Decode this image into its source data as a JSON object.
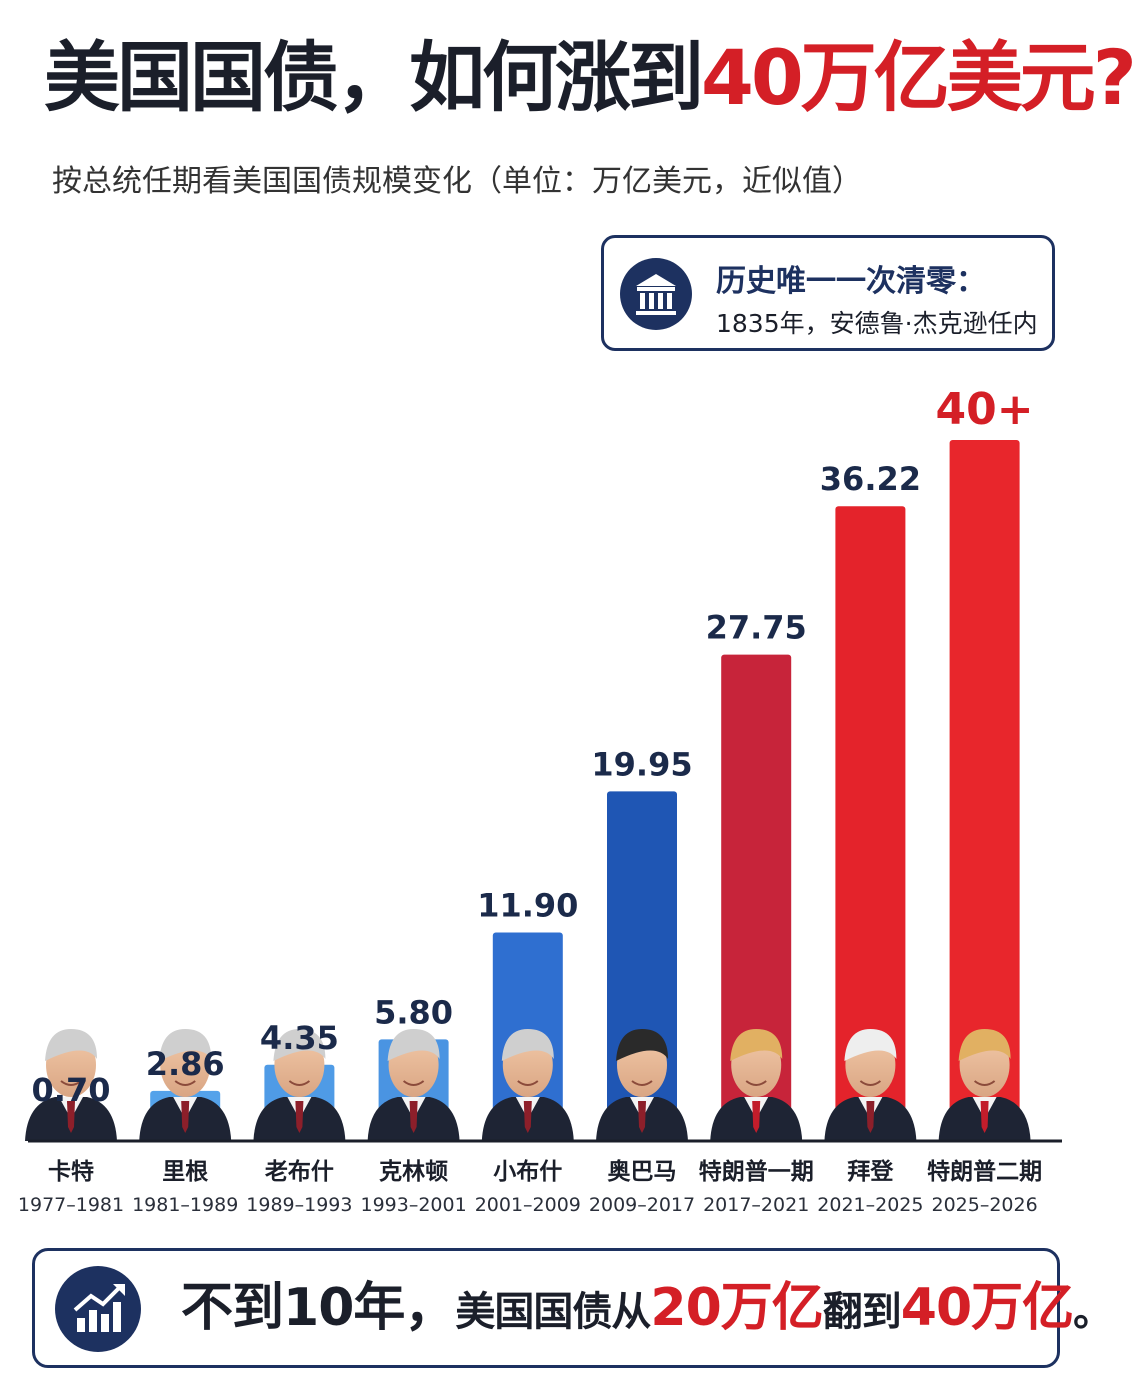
{
  "header": {
    "title_main": "美国国债，如何涨到",
    "title_highlight": "40万亿美元?",
    "subtitle": "按总统任期看美国国债规模变化（单位：万亿美元，近似值）"
  },
  "note": {
    "heading": "历史唯一一次清零：",
    "text": "1835年，安德鲁·杰克逊任内",
    "icon": "bank-icon"
  },
  "footer": {
    "part1": "不到",
    "part2": "10年，",
    "part3": "美国国债从",
    "part4": "20万亿",
    "part5": "翻到",
    "part6": "40万亿",
    "part7": "。",
    "icon": "growth-chart-icon"
  },
  "colors": {
    "accent_red": "#d41f26",
    "navy": "#1d3160"
  },
  "chart_data": {
    "type": "bar",
    "categories": [
      "卡特",
      "里根",
      "老布什",
      "克林顿",
      "小布什",
      "奥巴马",
      "特朗普一期",
      "拜登",
      "特朗普二期"
    ],
    "periods": [
      "1977–1981",
      "1981–1989",
      "1989–1993",
      "1993–2001",
      "2001–2009",
      "2009–2017",
      "2017–2021",
      "2021–2025",
      "2025–2026"
    ],
    "values": [
      0.7,
      2.86,
      4.35,
      5.8,
      11.9,
      19.95,
      27.75,
      36.22,
      40
    ],
    "value_labels": [
      "0.70",
      "2.86",
      "4.35",
      "5.80",
      "11.90",
      "19.95",
      "27.75",
      "36.22",
      "40+"
    ],
    "bar_colors": [
      "#5aa9ee",
      "#54a2ea",
      "#4f9be6",
      "#4a94e2",
      "#2f6fd0",
      "#1f56b4",
      "#c7243a",
      "#e4232b",
      "#e8262c"
    ],
    "label_colors": [
      "#1b2a4a",
      "#1b2a4a",
      "#1b2a4a",
      "#1b2a4a",
      "#1b2a4a",
      "#1b2a4a",
      "#1b2a4a",
      "#1b2a4a",
      "#d41f26"
    ],
    "portrait_icon": "president-portrait-icon",
    "xlabel": "",
    "ylabel": "",
    "grid": false
  }
}
